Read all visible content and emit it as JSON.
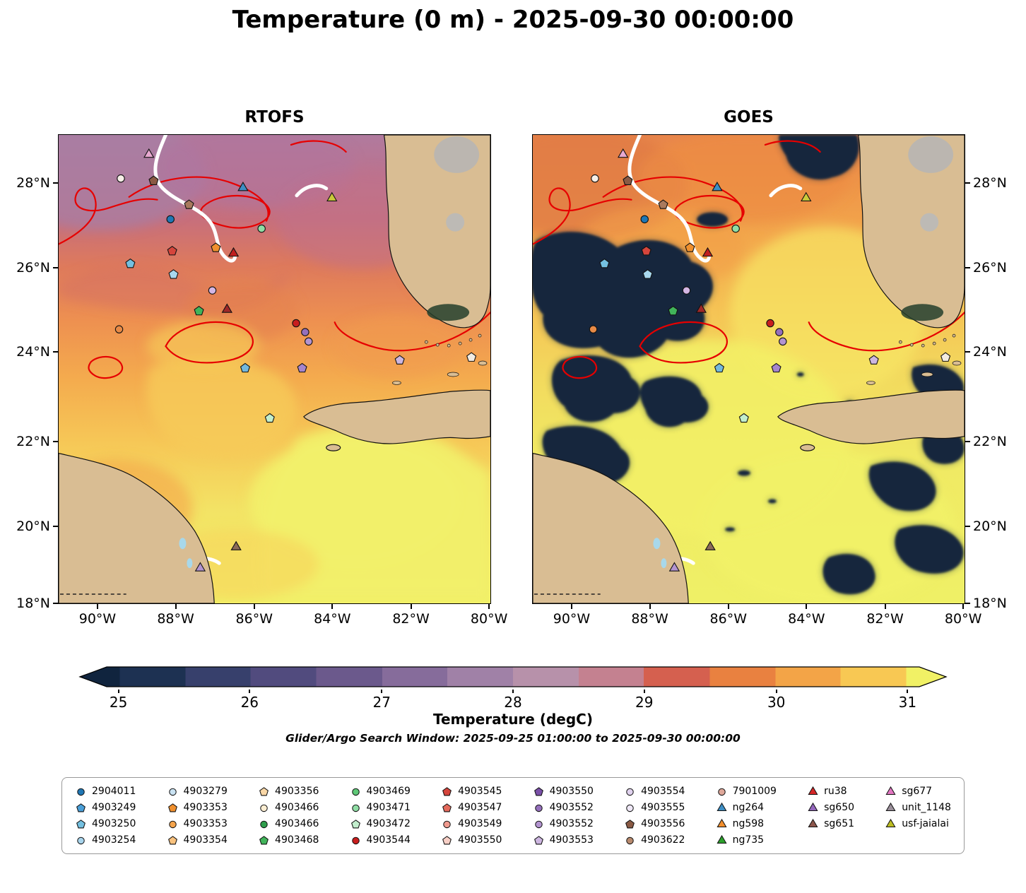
{
  "title": "Temperature (0 m) - 2025-09-30 00:00:00",
  "chart_data": {
    "type": "heatmap",
    "variable": "Temperature",
    "depth_label": "0 m",
    "valid_time": "2025-09-30 00:00:00",
    "panels": [
      {
        "title": "RTOFS"
      },
      {
        "title": "GOES"
      }
    ],
    "x_axis": {
      "ticks": [
        {
          "label": "90°W",
          "pct": 9.0
        },
        {
          "label": "88°W",
          "pct": 27.1
        },
        {
          "label": "86°W",
          "pct": 45.3
        },
        {
          "label": "84°W",
          "pct": 63.4
        },
        {
          "label": "82°W",
          "pct": 81.6
        },
        {
          "label": "80°W",
          "pct": 99.7
        }
      ]
    },
    "y_axis": {
      "ticks": [
        {
          "label": "28°N",
          "pct": 10.2
        },
        {
          "label": "26°N",
          "pct": 28.3
        },
        {
          "label": "24°N",
          "pct": 46.3
        },
        {
          "label": "22°N",
          "pct": 65.4
        },
        {
          "label": "20°N",
          "pct": 83.5
        },
        {
          "label": "18°N",
          "pct": 100.0
        }
      ]
    },
    "colorbar": {
      "label": "Temperature (degC)",
      "range": [
        25,
        31
      ],
      "extend": "both",
      "ticks": [
        {
          "label": "25",
          "pct": 4.6
        },
        {
          "label": "26",
          "pct": 19.7
        },
        {
          "label": "27",
          "pct": 34.9
        },
        {
          "label": "28",
          "pct": 50.0
        },
        {
          "label": "29",
          "pct": 65.1
        },
        {
          "label": "30",
          "pct": 80.3
        },
        {
          "label": "31",
          "pct": 95.4
        }
      ],
      "band_bounds_pct": [
        0,
        4.6,
        12.2,
        19.7,
        27.3,
        34.9,
        42.4,
        50.0,
        57.6,
        65.1,
        72.7,
        80.3,
        87.8,
        95.4,
        100
      ],
      "band_colors": [
        "#10243e",
        "#1d3152",
        "#37406c",
        "#514b7e",
        "#6b598c",
        "#866c9b",
        "#a081a7",
        "#b791aa",
        "#c48190",
        "#d5604f",
        "#e98140",
        "#f3a447",
        "#f8c853",
        "#f1f165"
      ]
    },
    "search_window": "Glider/Argo Search Window: 2025-09-25 01:00:00 to 2025-09-30 00:00:00",
    "markers": [
      {
        "x": 20.9,
        "y": 4.2,
        "shape": "triangle",
        "color": "#e8a9d0"
      },
      {
        "x": 14.4,
        "y": 9.3,
        "shape": "circle",
        "color": "#f7efe7"
      },
      {
        "x": 22.0,
        "y": 9.8,
        "shape": "pentagon",
        "color": "#8a5a44"
      },
      {
        "x": 30.2,
        "y": 14.9,
        "shape": "pentagon",
        "color": "#a97a5e"
      },
      {
        "x": 42.7,
        "y": 11.3,
        "shape": "triangle",
        "color": "#3e8ec4"
      },
      {
        "x": 63.3,
        "y": 13.5,
        "shape": "triangle",
        "color": "#c9ca3a"
      },
      {
        "x": 25.9,
        "y": 18.0,
        "shape": "circle",
        "color": "#2077b4"
      },
      {
        "x": 47.0,
        "y": 20.0,
        "shape": "circle",
        "color": "#8fdda4"
      },
      {
        "x": 36.4,
        "y": 24.1,
        "shape": "pentagon",
        "color": "#f0902e"
      },
      {
        "x": 26.3,
        "y": 24.8,
        "shape": "pentagon",
        "color": "#d5453c"
      },
      {
        "x": 40.5,
        "y": 25.3,
        "shape": "triangle",
        "color": "#c01f1f"
      },
      {
        "x": 16.6,
        "y": 27.5,
        "shape": "pentagon",
        "color": "#74c0e0"
      },
      {
        "x": 26.6,
        "y": 29.8,
        "shape": "pentagon",
        "color": "#a8d8ee"
      },
      {
        "x": 35.6,
        "y": 33.2,
        "shape": "circle",
        "color": "#d4b6e4"
      },
      {
        "x": 32.5,
        "y": 37.6,
        "shape": "pentagon",
        "color": "#41b45a"
      },
      {
        "x": 39.0,
        "y": 37.3,
        "shape": "triangle",
        "color": "#a02828"
      },
      {
        "x": 14.0,
        "y": 41.5,
        "shape": "circle",
        "color": "#e88a46"
      },
      {
        "x": 55.0,
        "y": 40.2,
        "shape": "circle",
        "color": "#c81e1e"
      },
      {
        "x": 57.1,
        "y": 42.1,
        "shape": "circle",
        "color": "#9570bc"
      },
      {
        "x": 57.9,
        "y": 44.1,
        "shape": "circle",
        "color": "#b394d0"
      },
      {
        "x": 43.2,
        "y": 49.8,
        "shape": "pentagon",
        "color": "#74b8dc"
      },
      {
        "x": 56.4,
        "y": 49.8,
        "shape": "pentagon",
        "color": "#a585cc"
      },
      {
        "x": 79.0,
        "y": 48.1,
        "shape": "pentagon",
        "color": "#cdb6e0"
      },
      {
        "x": 95.6,
        "y": 47.5,
        "shape": "pentagon",
        "color": "#f2ece2"
      },
      {
        "x": 48.9,
        "y": 60.5,
        "shape": "pentagon",
        "color": "#c2eecd"
      },
      {
        "x": 41.1,
        "y": 88.0,
        "shape": "triangle",
        "color": "#8c6a58"
      },
      {
        "x": 32.8,
        "y": 92.5,
        "shape": "triangle",
        "color": "#b394d0"
      }
    ],
    "legend_columns": [
      [
        {
          "label": "2904011",
          "shape": "circle",
          "color": "#2077b4"
        },
        {
          "label": "4903249",
          "shape": "pentagon",
          "color": "#4a9fd8"
        },
        {
          "label": "4903250",
          "shape": "pentagon",
          "color": "#74c0e0"
        },
        {
          "label": "4903254",
          "shape": "circle",
          "color": "#a8d4ec"
        }
      ],
      [
        {
          "label": "4903279",
          "shape": "circle",
          "color": "#c9e2f2"
        },
        {
          "label": "4903353",
          "shape": "pentagon",
          "color": "#f0902e"
        },
        {
          "label": "4903353",
          "shape": "circle",
          "color": "#f5a44c"
        },
        {
          "label": "4903354",
          "shape": "pentagon",
          "color": "#f9c27e"
        }
      ],
      [
        {
          "label": "4903356",
          "shape": "pentagon",
          "color": "#fad7a6"
        },
        {
          "label": "4903466",
          "shape": "circle",
          "color": "#fdeed2"
        },
        {
          "label": "4903466",
          "shape": "circle",
          "color": "#2f9e4c"
        },
        {
          "label": "4903468",
          "shape": "pentagon",
          "color": "#41b45a"
        }
      ],
      [
        {
          "label": "4903469",
          "shape": "circle",
          "color": "#5ec877"
        },
        {
          "label": "4903471",
          "shape": "circle",
          "color": "#8fdda4"
        },
        {
          "label": "4903472",
          "shape": "pentagon",
          "color": "#c2eecd"
        },
        {
          "label": "4903544",
          "shape": "circle",
          "color": "#c81e1e"
        }
      ],
      [
        {
          "label": "4903545",
          "shape": "pentagon",
          "color": "#d5453c"
        },
        {
          "label": "4903547",
          "shape": "pentagon",
          "color": "#e46a5c"
        },
        {
          "label": "4903549",
          "shape": "circle",
          "color": "#f09a8e"
        },
        {
          "label": "4903550",
          "shape": "pentagon",
          "color": "#f8cfc6"
        }
      ],
      [
        {
          "label": "4903550",
          "shape": "pentagon",
          "color": "#7a50a8"
        },
        {
          "label": "4903552",
          "shape": "circle",
          "color": "#9570bc"
        },
        {
          "label": "4903552",
          "shape": "circle",
          "color": "#b394d0"
        },
        {
          "label": "4903553",
          "shape": "pentagon",
          "color": "#cdb6e0"
        }
      ],
      [
        {
          "label": "4903554",
          "shape": "circle",
          "color": "#e0d2ee"
        },
        {
          "label": "4903555",
          "shape": "circle",
          "color": "#efe8f7"
        },
        {
          "label": "4903556",
          "shape": "pentagon",
          "color": "#8a5a44"
        },
        {
          "label": "4903622",
          "shape": "circle",
          "color": "#b88a6e"
        }
      ],
      [
        {
          "label": "7901009",
          "shape": "circle",
          "color": "#dfa89a"
        },
        {
          "label": "ng264",
          "shape": "triangle",
          "color": "#3e8ec4"
        },
        {
          "label": "ng598",
          "shape": "triangle",
          "color": "#f28e2c"
        },
        {
          "label": "ng735",
          "shape": "triangle",
          "color": "#2ca02c"
        }
      ],
      [
        {
          "label": "ru38",
          "shape": "triangle",
          "color": "#d62728"
        },
        {
          "label": "sg650",
          "shape": "triangle",
          "color": "#9467bd"
        },
        {
          "label": "sg651",
          "shape": "triangle",
          "color": "#8c564b"
        }
      ],
      [
        {
          "label": "sg677",
          "shape": "triangle",
          "color": "#e377c2"
        },
        {
          "label": "unit_1148",
          "shape": "triangle",
          "color": "#9a8f9a"
        },
        {
          "label": "usf-jaialai",
          "shape": "triangle",
          "color": "#bcbd22"
        }
      ]
    ]
  }
}
